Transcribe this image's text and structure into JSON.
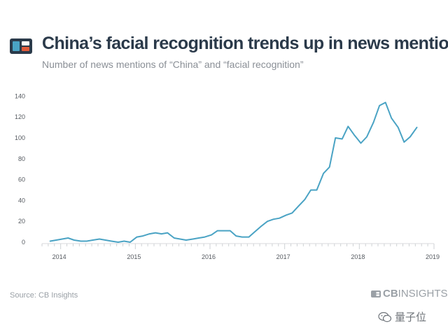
{
  "header": {
    "title": "China’s facial recognition trends up in news mentions",
    "subtitle": "Number of news mentions of “China” and “facial recognition”"
  },
  "footer": {
    "source": "Source: CB Insights",
    "brand_prefix": "CB",
    "brand_suffix": "INSIGHTS",
    "watermark": "量子位"
  },
  "colors": {
    "line": "#4aa3c4",
    "title": "#2b3a4a",
    "logo_dark": "#2b3a4a",
    "logo_accent": "#e05a3a"
  },
  "icons": {
    "logo": "cb-insights-logo-icon",
    "watermark": "wechat-icon"
  },
  "chart_data": {
    "type": "line",
    "title": "China’s facial recognition trends up in news mentions",
    "subtitle": "Number of news mentions of “China” and “facial recognition”",
    "xlabel": "",
    "ylabel": "",
    "x_ticks": [
      "2014",
      "2015",
      "2016",
      "2017",
      "2018",
      "2019"
    ],
    "y_ticks": [
      0,
      20,
      40,
      60,
      80,
      100,
      120,
      140
    ],
    "xlim": [
      2013.75,
      2019.0
    ],
    "ylim": [
      0,
      145
    ],
    "grid": false,
    "legend": "none",
    "series": [
      {
        "values": [
          [
            2013.86,
            1
          ],
          [
            2013.94,
            2
          ],
          [
            2014.02,
            3
          ],
          [
            2014.1,
            4
          ],
          [
            2014.18,
            2
          ],
          [
            2014.27,
            1
          ],
          [
            2014.35,
            1
          ],
          [
            2014.43,
            2
          ],
          [
            2014.52,
            3
          ],
          [
            2014.6,
            2
          ],
          [
            2014.68,
            1
          ],
          [
            2014.77,
            0
          ],
          [
            2014.85,
            1
          ],
          [
            2014.93,
            0
          ],
          [
            2015.02,
            5
          ],
          [
            2015.1,
            6
          ],
          [
            2015.19,
            8
          ],
          [
            2015.27,
            9
          ],
          [
            2015.35,
            8
          ],
          [
            2015.43,
            9
          ],
          [
            2015.52,
            4
          ],
          [
            2015.6,
            3
          ],
          [
            2015.68,
            2
          ],
          [
            2015.77,
            3
          ],
          [
            2015.85,
            4
          ],
          [
            2015.93,
            5
          ],
          [
            2016.02,
            7
          ],
          [
            2016.1,
            11
          ],
          [
            2016.19,
            11
          ],
          [
            2016.27,
            11
          ],
          [
            2016.35,
            6
          ],
          [
            2016.43,
            5
          ],
          [
            2016.52,
            5
          ],
          [
            2016.6,
            10
          ],
          [
            2016.68,
            15
          ],
          [
            2016.77,
            20
          ],
          [
            2016.85,
            22
          ],
          [
            2016.93,
            23
          ],
          [
            2017.02,
            26
          ],
          [
            2017.1,
            28
          ],
          [
            2017.19,
            35
          ],
          [
            2017.27,
            41
          ],
          [
            2017.35,
            50
          ],
          [
            2017.43,
            50
          ],
          [
            2017.52,
            66
          ],
          [
            2017.6,
            72
          ],
          [
            2017.68,
            100
          ],
          [
            2017.77,
            99
          ],
          [
            2017.85,
            111
          ],
          [
            2017.93,
            103
          ],
          [
            2018.02,
            95
          ],
          [
            2018.1,
            101
          ],
          [
            2018.19,
            115
          ],
          [
            2018.27,
            131
          ],
          [
            2018.35,
            134
          ],
          [
            2018.43,
            119
          ],
          [
            2018.52,
            110
          ],
          [
            2018.6,
            96
          ],
          [
            2018.68,
            101
          ],
          [
            2018.77,
            110
          ]
        ]
      }
    ]
  }
}
